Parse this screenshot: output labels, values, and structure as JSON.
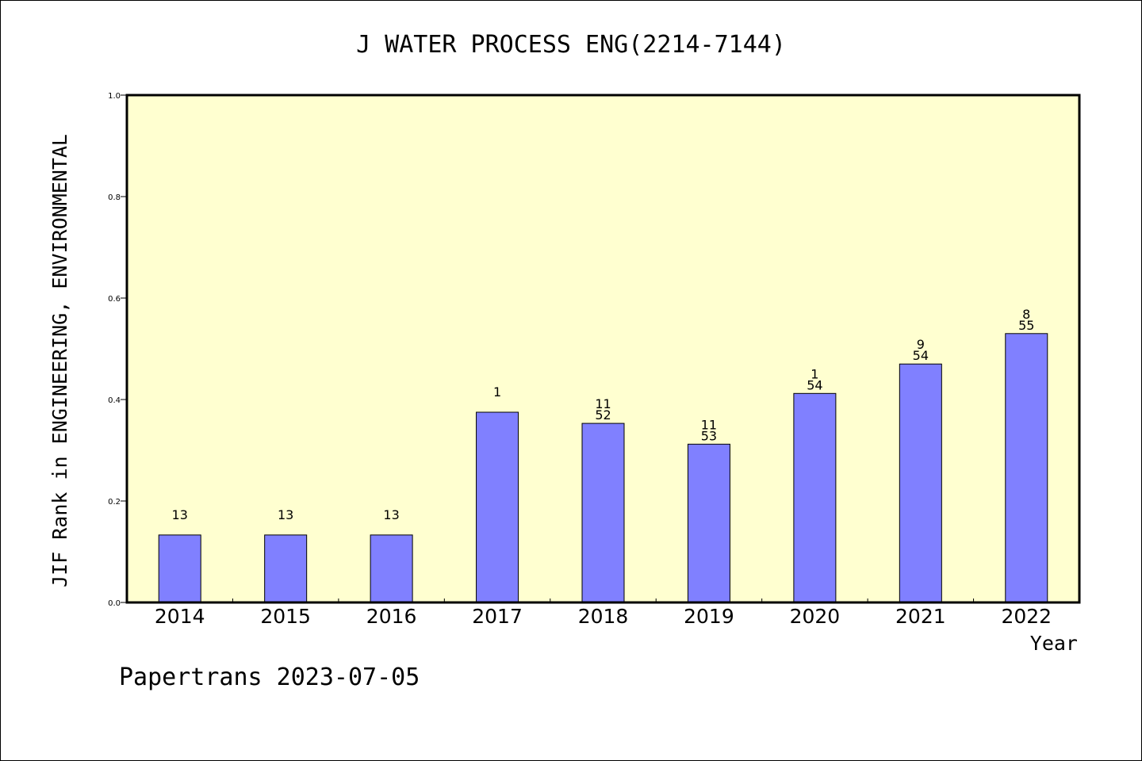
{
  "chart_data": {
    "type": "bar",
    "title": "J WATER PROCESS ENG(2214-7144)",
    "xlabel": "Year",
    "ylabel": "JIF Rank in ENGINEERING, ENVIRONMENTAL",
    "ylim": [
      0,
      1.0
    ],
    "yticks": [
      "0.0",
      "0.2",
      "0.4",
      "0.6",
      "0.8",
      "1.0"
    ],
    "categories": [
      "2014",
      "2015",
      "2016",
      "2017",
      "2018",
      "2019",
      "2020",
      "2021",
      "2022"
    ],
    "values": [
      0.133,
      0.133,
      0.133,
      0.375,
      0.353,
      0.312,
      0.412,
      0.47,
      0.53
    ],
    "bar_labels": [
      [
        "13"
      ],
      [
        "13"
      ],
      [
        "13"
      ],
      [
        "1"
      ],
      [
        "11",
        "52"
      ],
      [
        "11",
        "53"
      ],
      [
        "1",
        "54"
      ],
      [
        "9",
        "54"
      ],
      [
        "8",
        "55"
      ]
    ],
    "grid": false,
    "colors": {
      "bar": "#8080ff",
      "plot_background": "#ffffd0",
      "axis": "#000000"
    }
  },
  "footer": {
    "text": "Papertrans 2023-07-05"
  }
}
